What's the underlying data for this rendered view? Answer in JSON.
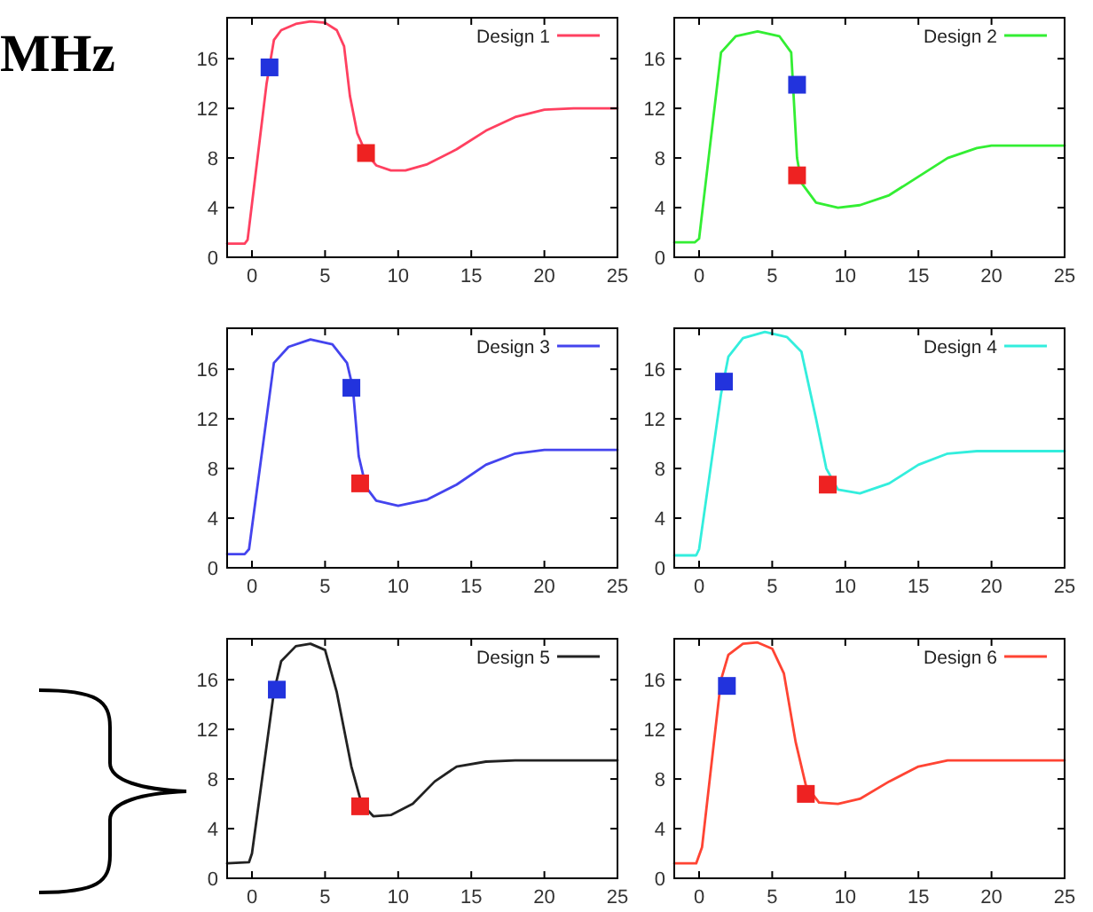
{
  "chart_data": [
    {
      "type": "line",
      "annotations": [
        "MHz"
      ],
      "xlim": [
        -1.7,
        25
      ],
      "ylim": [
        0,
        19.3
      ],
      "xticks": [
        0,
        5,
        10,
        15,
        20,
        25
      ],
      "yticks": [
        0,
        4,
        8,
        12,
        16
      ],
      "legend": "top right",
      "grid": false,
      "series": [
        {
          "name": "Design 1",
          "color": "#ff4060",
          "marker": "none",
          "x": [
            -1.7,
            -0.5,
            -0.3,
            1,
            1.5,
            2,
            3,
            4,
            5,
            5.8,
            6.3,
            6.7,
            7.2,
            7.8,
            8.5,
            9.5,
            10.5,
            12,
            14,
            16,
            18,
            20,
            22,
            25
          ],
          "values": [
            1.1,
            1.1,
            1.4,
            14,
            17.5,
            18.3,
            18.8,
            19,
            18.9,
            18.3,
            17,
            13,
            10,
            8.4,
            7.4,
            7,
            7,
            7.5,
            8.7,
            10.2,
            11.3,
            11.9,
            12,
            12
          ]
        },
        {
          "type": "scatter",
          "color": "#2233dd",
          "marker": "square",
          "x": [
            1.2
          ],
          "values": [
            15.3
          ]
        },
        {
          "type": "scatter",
          "color": "#ee2222",
          "marker": "square",
          "x": [
            7.8
          ],
          "values": [
            8.4
          ]
        }
      ]
    },
    {
      "type": "line",
      "xlim": [
        -1.7,
        25
      ],
      "ylim": [
        0,
        19.3
      ],
      "xticks": [
        0,
        5,
        10,
        15,
        20,
        25
      ],
      "yticks": [
        0,
        4,
        8,
        12,
        16
      ],
      "legend": "top right",
      "grid": false,
      "series": [
        {
          "name": "Design 2",
          "color": "#33ee33",
          "marker": "none",
          "x": [
            -1.7,
            -0.3,
            0,
            1.5,
            2.5,
            4,
            5.5,
            6.3,
            6.7,
            7,
            8,
            9.5,
            11,
            13,
            15,
            17,
            19,
            20,
            25
          ],
          "values": [
            1.2,
            1.2,
            1.5,
            16.5,
            17.8,
            18.2,
            17.8,
            16.5,
            8,
            6,
            4.4,
            4,
            4.2,
            5,
            6.5,
            8,
            8.8,
            9,
            9
          ]
        },
        {
          "type": "scatter",
          "color": "#2233dd",
          "marker": "square",
          "x": [
            6.7
          ],
          "values": [
            13.9
          ]
        },
        {
          "type": "scatter",
          "color": "#ee2222",
          "marker": "square",
          "x": [
            6.7
          ],
          "values": [
            6.6
          ]
        }
      ]
    },
    {
      "type": "line",
      "xlim": [
        -1.7,
        25
      ],
      "ylim": [
        0,
        19.3
      ],
      "xticks": [
        0,
        5,
        10,
        15,
        20,
        25
      ],
      "yticks": [
        0,
        4,
        8,
        12,
        16
      ],
      "legend": "top right",
      "grid": false,
      "series": [
        {
          "name": "Design 3",
          "color": "#4444ee",
          "marker": "none",
          "x": [
            -1.7,
            -0.5,
            -0.2,
            1.5,
            2.5,
            4,
            5.5,
            6.5,
            6.9,
            7.3,
            7.8,
            8.5,
            10,
            12,
            14,
            16,
            18,
            20,
            25
          ],
          "values": [
            1.1,
            1.1,
            1.5,
            16.5,
            17.8,
            18.4,
            18,
            16.5,
            14.5,
            9,
            6.5,
            5.4,
            5,
            5.5,
            6.7,
            8.3,
            9.2,
            9.5,
            9.5
          ]
        },
        {
          "type": "scatter",
          "color": "#2233dd",
          "marker": "square",
          "x": [
            6.8
          ],
          "values": [
            14.5
          ]
        },
        {
          "type": "scatter",
          "color": "#ee2222",
          "marker": "square",
          "x": [
            7.4
          ],
          "values": [
            6.8
          ]
        }
      ]
    },
    {
      "type": "line",
      "xlim": [
        -1.7,
        25
      ],
      "ylim": [
        0,
        19.3
      ],
      "xticks": [
        0,
        5,
        10,
        15,
        20,
        25
      ],
      "yticks": [
        0,
        4,
        8,
        12,
        16
      ],
      "legend": "top right",
      "grid": false,
      "series": [
        {
          "name": "Design 4",
          "color": "#33eedd",
          "marker": "none",
          "x": [
            -1.7,
            -0.2,
            0,
            1.5,
            2,
            3,
            4.5,
            6,
            7,
            8,
            8.7,
            9.5,
            11,
            13,
            15,
            17,
            19,
            25
          ],
          "values": [
            1,
            1,
            1.5,
            14,
            17,
            18.5,
            19,
            18.6,
            17.4,
            12,
            8,
            6.3,
            6,
            6.8,
            8.3,
            9.2,
            9.4,
            9.4
          ]
        },
        {
          "type": "scatter",
          "color": "#2233dd",
          "marker": "square",
          "x": [
            1.7
          ],
          "values": [
            15
          ]
        },
        {
          "type": "scatter",
          "color": "#ee2222",
          "marker": "square",
          "x": [
            8.8
          ],
          "values": [
            6.7
          ]
        }
      ]
    },
    {
      "type": "line",
      "xlim": [
        -1.7,
        25
      ],
      "ylim": [
        0,
        19.3
      ],
      "xticks": [
        0,
        5,
        10,
        15,
        20,
        25
      ],
      "yticks": [
        0,
        4,
        8,
        12,
        16
      ],
      "legend": "top right",
      "grid": false,
      "series": [
        {
          "name": "Design 5",
          "color": "#222222",
          "marker": "none",
          "x": [
            -1.7,
            -0.2,
            0,
            1.5,
            2,
            3,
            4,
            5,
            5.8,
            6.8,
            7.5,
            8.3,
            9.5,
            11,
            12.5,
            14,
            16,
            18,
            25
          ],
          "values": [
            1.2,
            1.3,
            2,
            15,
            17.5,
            18.7,
            18.9,
            18.4,
            15,
            9,
            6,
            5,
            5.1,
            6,
            7.8,
            9,
            9.4,
            9.5,
            9.5
          ]
        },
        {
          "type": "scatter",
          "color": "#2233dd",
          "marker": "square",
          "x": [
            1.7
          ],
          "values": [
            15.2
          ]
        },
        {
          "type": "scatter",
          "color": "#ee2222",
          "marker": "square",
          "x": [
            7.4
          ],
          "values": [
            5.8
          ]
        }
      ]
    },
    {
      "type": "line",
      "xlim": [
        -1.7,
        25
      ],
      "ylim": [
        0,
        19.3
      ],
      "xticks": [
        0,
        5,
        10,
        15,
        20,
        25
      ],
      "yticks": [
        0,
        4,
        8,
        12,
        16
      ],
      "legend": "top right",
      "grid": false,
      "series": [
        {
          "name": "Design 6",
          "color": "#ff4433",
          "marker": "none",
          "x": [
            -1.7,
            -0.2,
            0.2,
            1.5,
            2,
            3,
            4,
            5,
            5.8,
            6.6,
            7.3,
            8.2,
            9.5,
            11,
            13,
            15,
            17,
            25
          ],
          "values": [
            1.2,
            1.2,
            2.5,
            16,
            18,
            18.9,
            19,
            18.5,
            16.5,
            11,
            7.5,
            6.1,
            6,
            6.4,
            7.8,
            9,
            9.5,
            9.5
          ]
        },
        {
          "type": "scatter",
          "color": "#2233dd",
          "marker": "square",
          "x": [
            1.9
          ],
          "values": [
            15.5
          ]
        },
        {
          "type": "scatter",
          "color": "#ee2222",
          "marker": "square",
          "x": [
            7.3
          ],
          "values": [
            6.8
          ]
        }
      ]
    }
  ]
}
